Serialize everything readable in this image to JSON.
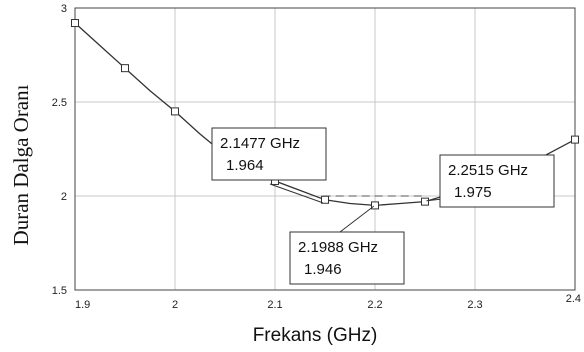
{
  "chart_data": {
    "type": "line",
    "xlabel": "Frekans (GHz)",
    "ylabel": "Duran Dalga Oranı",
    "xlim": [
      1.9,
      2.4
    ],
    "ylim": [
      1.5,
      3
    ],
    "x_ticks": [
      "1.9",
      "2",
      "2.1",
      "2.2",
      "2.3",
      "2.4"
    ],
    "y_ticks": [
      "1.5",
      "2",
      "2.5",
      "3"
    ],
    "grid": true,
    "series": [
      {
        "x": [
          1.9,
          1.925,
          1.95,
          1.975,
          2.0,
          2.025,
          2.05,
          2.075,
          2.1,
          2.125,
          2.15,
          2.175,
          2.2,
          2.225,
          2.25,
          2.275,
          2.3,
          2.325,
          2.35,
          2.375,
          2.4
        ],
        "values": [
          2.92,
          2.8,
          2.68,
          2.56,
          2.45,
          2.33,
          2.22,
          2.15,
          2.08,
          2.03,
          1.98,
          1.96,
          1.95,
          1.96,
          1.97,
          2.01,
          2.05,
          2.1,
          2.16,
          2.23,
          2.3
        ],
        "markers_x": [
          1.9,
          1.95,
          2.0,
          2.05,
          2.1,
          2.15,
          2.2,
          2.25,
          2.3,
          2.35,
          2.4
        ],
        "markers_y": [
          2.92,
          2.68,
          2.45,
          2.22,
          2.08,
          1.98,
          1.95,
          1.97,
          2.05,
          2.16,
          2.3
        ]
      }
    ],
    "reference_line": {
      "y": 2.0,
      "x_start": 2.1477,
      "x_end": 2.2515
    },
    "annotations": [
      {
        "freq": "2.1477 GHz",
        "value": "1.964",
        "x": 2.1477,
        "y": 1.964
      },
      {
        "freq": "2.1988 GHz",
        "value": "1.946",
        "x": 2.1988,
        "y": 1.946
      },
      {
        "freq": "2.2515 GHz",
        "value": "1.975",
        "x": 2.2515,
        "y": 1.975
      }
    ],
    "colors": {
      "line": "#333333",
      "grid": "#c8c8c8",
      "frame": "#444444"
    }
  }
}
